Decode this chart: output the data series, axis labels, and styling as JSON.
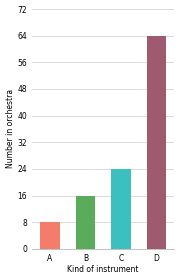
{
  "categories": [
    "A",
    "B",
    "C",
    "D"
  ],
  "values": [
    8,
    16,
    24,
    64
  ],
  "bar_colors": [
    "#f47c6a",
    "#5aab5a",
    "#3bbfbf",
    "#9e5a6e"
  ],
  "xlabel": "Kind of instrument",
  "ylabel": "Number in orchestra",
  "ylim": [
    0,
    72
  ],
  "yticks": [
    0,
    8,
    16,
    24,
    32,
    40,
    48,
    56,
    64,
    72
  ],
  "background_color": "#ffffff",
  "grid_color": "#cccccc",
  "bar_width": 0.55
}
